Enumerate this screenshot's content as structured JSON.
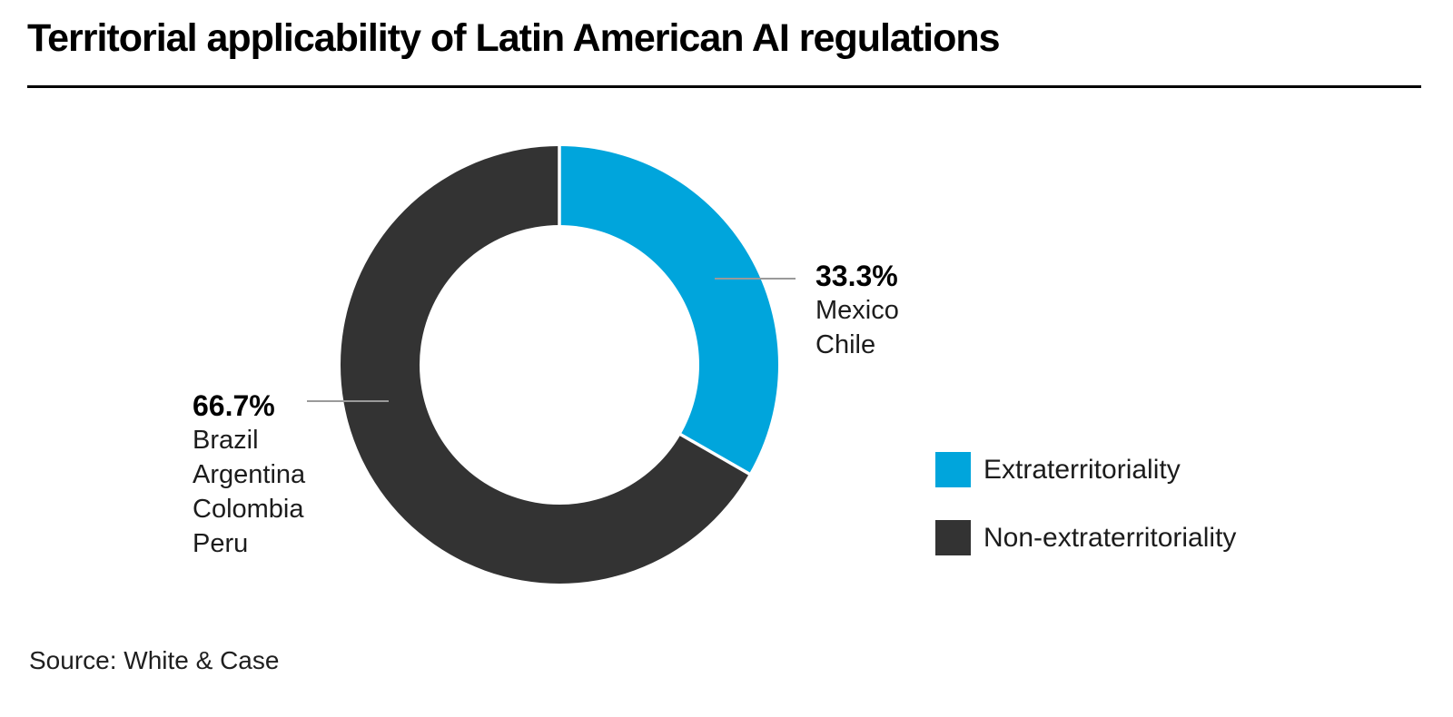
{
  "header": {
    "title": "Territorial applicability of Latin American AI regulations"
  },
  "chart_data": {
    "type": "pie",
    "subtype": "donut",
    "title": "Territorial applicability of Latin American AI regulations",
    "units": "percent",
    "slices": [
      {
        "label": "Extraterritoriality",
        "value": 33.3,
        "display_pct": "33.3%",
        "countries": [
          "Mexico",
          "Chile"
        ],
        "color": "#00A5DC"
      },
      {
        "label": "Non-extraterritoriality",
        "value": 66.7,
        "display_pct": "66.7%",
        "countries": [
          "Brazil",
          "Argentina",
          "Colombia",
          "Peru"
        ],
        "color": "#333333"
      }
    ],
    "start_angle_deg_from_top": 0,
    "direction": "clockwise",
    "legend_position": "right",
    "donut_hole_ratio": 0.64
  },
  "source": {
    "text": "Source: White & Case"
  },
  "colors": {
    "background": "#ffffff",
    "title_rule": "#000000",
    "connector_line": "#9a9a9a",
    "segment_gap": "#ffffff"
  }
}
